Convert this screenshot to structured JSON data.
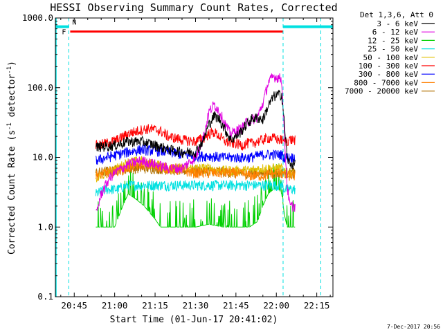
{
  "chart_data": {
    "type": "line",
    "title": "HESSI Observing Summary Count Rates, Corrected",
    "xlabel": "Start Time (01-Jun-17 20:41:02)",
    "ylabel_main": "Corrected Count Rate (s",
    "ylabel_sup1": "-1",
    "ylabel_mid": " detector",
    "ylabel_sup2": "-1",
    "ylabel_end": ")",
    "yscale": "log",
    "ylim": [
      0.1,
      1000
    ],
    "xlim_min": [
      -7,
      96
    ],
    "xticks": [
      {
        "v": 0,
        "label": "20:45"
      },
      {
        "v": 15,
        "label": "21:00"
      },
      {
        "v": 30,
        "label": "21:15"
      },
      {
        "v": 45,
        "label": "21:30"
      },
      {
        "v": 60,
        "label": "21:45"
      },
      {
        "v": 75,
        "label": "22:00"
      },
      {
        "v": 90,
        "label": "22:15"
      }
    ],
    "yticks": [
      {
        "v": 0.1,
        "label": "0.1"
      },
      {
        "v": 1,
        "label": "1.0"
      },
      {
        "v": 10,
        "label": "10.0"
      },
      {
        "v": 100,
        "label": "100.0"
      },
      {
        "v": 1000,
        "label": "1000.0"
      }
    ],
    "legend_title": "Det 1,3,6, Att 0",
    "legend_position": "right",
    "series": [
      {
        "name": "3 - 6 keV",
        "color": "#000000",
        "points": [
          [
            8,
            14
          ],
          [
            15,
            15
          ],
          [
            20,
            17
          ],
          [
            25,
            17
          ],
          [
            30,
            15
          ],
          [
            35,
            13
          ],
          [
            40,
            12
          ],
          [
            45,
            12
          ],
          [
            48,
            18
          ],
          [
            50,
            30
          ],
          [
            52,
            40
          ],
          [
            54,
            35
          ],
          [
            56,
            25
          ],
          [
            58,
            18
          ],
          [
            60,
            20
          ],
          [
            62,
            24
          ],
          [
            64,
            30
          ],
          [
            66,
            36
          ],
          [
            68,
            37
          ],
          [
            70,
            35
          ],
          [
            72,
            55
          ],
          [
            74,
            75
          ],
          [
            76,
            80
          ],
          [
            77,
            80
          ],
          [
            78,
            30
          ],
          [
            79,
            10
          ],
          [
            80,
            8
          ],
          [
            82,
            8
          ]
        ]
      },
      {
        "name": "6 - 12 keV",
        "color": "#e000e0",
        "points": [
          [
            8,
            1.5
          ],
          [
            10,
            3
          ],
          [
            13,
            5
          ],
          [
            15,
            6
          ],
          [
            20,
            8
          ],
          [
            25,
            9
          ],
          [
            30,
            8
          ],
          [
            35,
            7
          ],
          [
            40,
            7
          ],
          [
            45,
            10
          ],
          [
            48,
            20
          ],
          [
            50,
            45
          ],
          [
            52,
            58
          ],
          [
            54,
            45
          ],
          [
            56,
            30
          ],
          [
            58,
            22
          ],
          [
            60,
            24
          ],
          [
            62,
            26
          ],
          [
            64,
            32
          ],
          [
            66,
            35
          ],
          [
            68,
            38
          ],
          [
            70,
            60
          ],
          [
            72,
            120
          ],
          [
            74,
            145
          ],
          [
            76,
            140
          ],
          [
            77,
            130
          ],
          [
            78,
            20
          ],
          [
            79,
            4
          ],
          [
            80,
            2
          ],
          [
            82,
            2
          ]
        ]
      },
      {
        "name": "12 - 25 keV",
        "color": "#00d000",
        "points": [
          [
            8,
            1
          ],
          [
            15,
            1
          ],
          [
            18,
            2
          ],
          [
            20,
            3
          ],
          [
            23,
            2.5
          ],
          [
            26,
            2
          ],
          [
            28,
            1.6
          ],
          [
            30,
            1.3
          ],
          [
            32,
            1
          ],
          [
            45,
            1
          ],
          [
            50,
            1.1
          ],
          [
            55,
            1
          ],
          [
            60,
            1
          ],
          [
            65,
            1
          ],
          [
            68,
            1.2
          ],
          [
            70,
            2
          ],
          [
            72,
            3
          ],
          [
            74,
            3.5
          ],
          [
            76,
            3.5
          ],
          [
            77,
            3
          ],
          [
            78,
            1.5
          ],
          [
            79,
            1
          ],
          [
            82,
            1
          ]
        ]
      },
      {
        "name": "25 - 50 keV",
        "color": "#00e0e0",
        "points": [
          [
            8,
            3
          ],
          [
            12,
            3.5
          ],
          [
            16,
            3.5
          ],
          [
            20,
            4
          ],
          [
            30,
            4
          ],
          [
            40,
            4
          ],
          [
            50,
            4
          ],
          [
            60,
            4
          ],
          [
            70,
            4
          ],
          [
            76,
            4
          ],
          [
            77,
            4
          ],
          [
            78,
            3.5
          ],
          [
            80,
            3.5
          ],
          [
            82,
            3.5
          ]
        ]
      },
      {
        "name": "50 - 100 keV",
        "color": "#e0c000",
        "points": [
          [
            8,
            5
          ],
          [
            12,
            6
          ],
          [
            16,
            7
          ],
          [
            20,
            8.5
          ],
          [
            25,
            9
          ],
          [
            30,
            8
          ],
          [
            35,
            7
          ],
          [
            40,
            7
          ],
          [
            45,
            7
          ],
          [
            50,
            7
          ],
          [
            55,
            6.5
          ],
          [
            60,
            6.5
          ],
          [
            65,
            6.5
          ],
          [
            70,
            7
          ],
          [
            75,
            7
          ],
          [
            77,
            7
          ],
          [
            78,
            6
          ],
          [
            80,
            6
          ],
          [
            82,
            6
          ]
        ]
      },
      {
        "name": "100 - 300 keV",
        "color": "#ff0000",
        "points": [
          [
            8,
            15
          ],
          [
            12,
            16
          ],
          [
            16,
            18
          ],
          [
            20,
            22
          ],
          [
            25,
            25
          ],
          [
            28,
            26
          ],
          [
            32,
            24
          ],
          [
            35,
            20
          ],
          [
            40,
            18
          ],
          [
            45,
            17
          ],
          [
            48,
            19
          ],
          [
            50,
            22
          ],
          [
            52,
            23
          ],
          [
            54,
            20
          ],
          [
            56,
            17
          ],
          [
            58,
            16
          ],
          [
            60,
            16
          ],
          [
            62,
            15
          ],
          [
            64,
            16
          ],
          [
            66,
            16
          ],
          [
            68,
            17
          ],
          [
            70,
            18
          ],
          [
            72,
            19
          ],
          [
            74,
            19
          ],
          [
            76,
            18
          ],
          [
            77,
            18
          ],
          [
            78,
            17
          ],
          [
            80,
            18
          ],
          [
            82,
            18
          ]
        ]
      },
      {
        "name": "300 - 800 keV",
        "color": "#0000ff",
        "points": [
          [
            8,
            9
          ],
          [
            12,
            10
          ],
          [
            16,
            11
          ],
          [
            20,
            12
          ],
          [
            25,
            13
          ],
          [
            30,
            12.5
          ],
          [
            35,
            12
          ],
          [
            40,
            11
          ],
          [
            45,
            10.5
          ],
          [
            50,
            10.5
          ],
          [
            55,
            10
          ],
          [
            60,
            10
          ],
          [
            65,
            10
          ],
          [
            70,
            11
          ],
          [
            75,
            11
          ],
          [
            77,
            11
          ],
          [
            78,
            10
          ],
          [
            80,
            10
          ],
          [
            82,
            10
          ]
        ]
      },
      {
        "name": "800 - 7000 keV",
        "color": "#ff8000",
        "points": [
          [
            8,
            5.5
          ],
          [
            12,
            6
          ],
          [
            16,
            6.5
          ],
          [
            20,
            7
          ],
          [
            25,
            8
          ],
          [
            30,
            7.5
          ],
          [
            35,
            7
          ],
          [
            40,
            6.5
          ],
          [
            45,
            6
          ],
          [
            50,
            6
          ],
          [
            55,
            6
          ],
          [
            60,
            6
          ],
          [
            65,
            5.5
          ],
          [
            70,
            5.5
          ],
          [
            75,
            6
          ],
          [
            77,
            6
          ],
          [
            78,
            5.5
          ],
          [
            80,
            5.5
          ],
          [
            82,
            5.5
          ]
        ]
      },
      {
        "name": "7000 - 20000 keV",
        "color": "#b07000",
        "points": [
          [
            8,
            6
          ],
          [
            20,
            7
          ],
          [
            30,
            7
          ],
          [
            40,
            6.5
          ],
          [
            50,
            6.5
          ],
          [
            60,
            6
          ],
          [
            70,
            6
          ],
          [
            77,
            6
          ],
          [
            78,
            6
          ],
          [
            82,
            6
          ]
        ]
      }
    ],
    "flags": {
      "saa_bars": [
        [
          -7,
          -2
        ],
        [
          77.5,
          96
        ]
      ],
      "saa_color": "#00e0e0",
      "flare_bar": [
        -1.5,
        77.5
      ],
      "flare_color": "#ff0000",
      "flare_label": "F",
      "night_label": "N",
      "flag_level": 700,
      "dashed_cyan_lines": [
        -2,
        77.5,
        91.5
      ],
      "solid_cyan_line": -7
    }
  },
  "footer": {
    "date": "7-Dec-2017 20:56"
  }
}
